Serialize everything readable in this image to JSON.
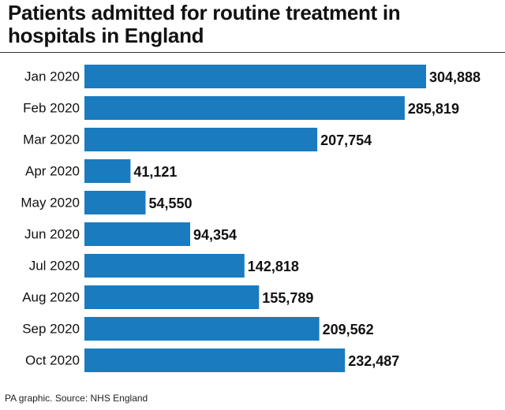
{
  "header": {
    "title": "Patients admitted for routine treatment in hospitals in England"
  },
  "footer": {
    "source": "PA graphic. Source: NHS England"
  },
  "colors": {
    "bar": "#1a7bbf",
    "text": "#111111"
  },
  "chart_data": {
    "type": "bar",
    "orientation": "horizontal",
    "title": "Patients admitted for routine treatment in hospitals in England",
    "xlabel": "",
    "ylabel": "",
    "grid": false,
    "categories": [
      "Jan 2020",
      "Feb 2020",
      "Mar 2020",
      "Apr 2020",
      "May 2020",
      "Jun 2020",
      "Jul 2020",
      "Aug 2020",
      "Sep 2020",
      "Oct 2020"
    ],
    "values": [
      304888,
      285819,
      207754,
      41121,
      54550,
      94354,
      142818,
      155789,
      209562,
      232487
    ],
    "value_labels": [
      "304,888",
      "285,819",
      "207,754",
      "41,121",
      "54,550",
      "94,354",
      "142,818",
      "155,789",
      "209,562",
      "232,487"
    ],
    "xlim": [
      0,
      304888
    ]
  }
}
